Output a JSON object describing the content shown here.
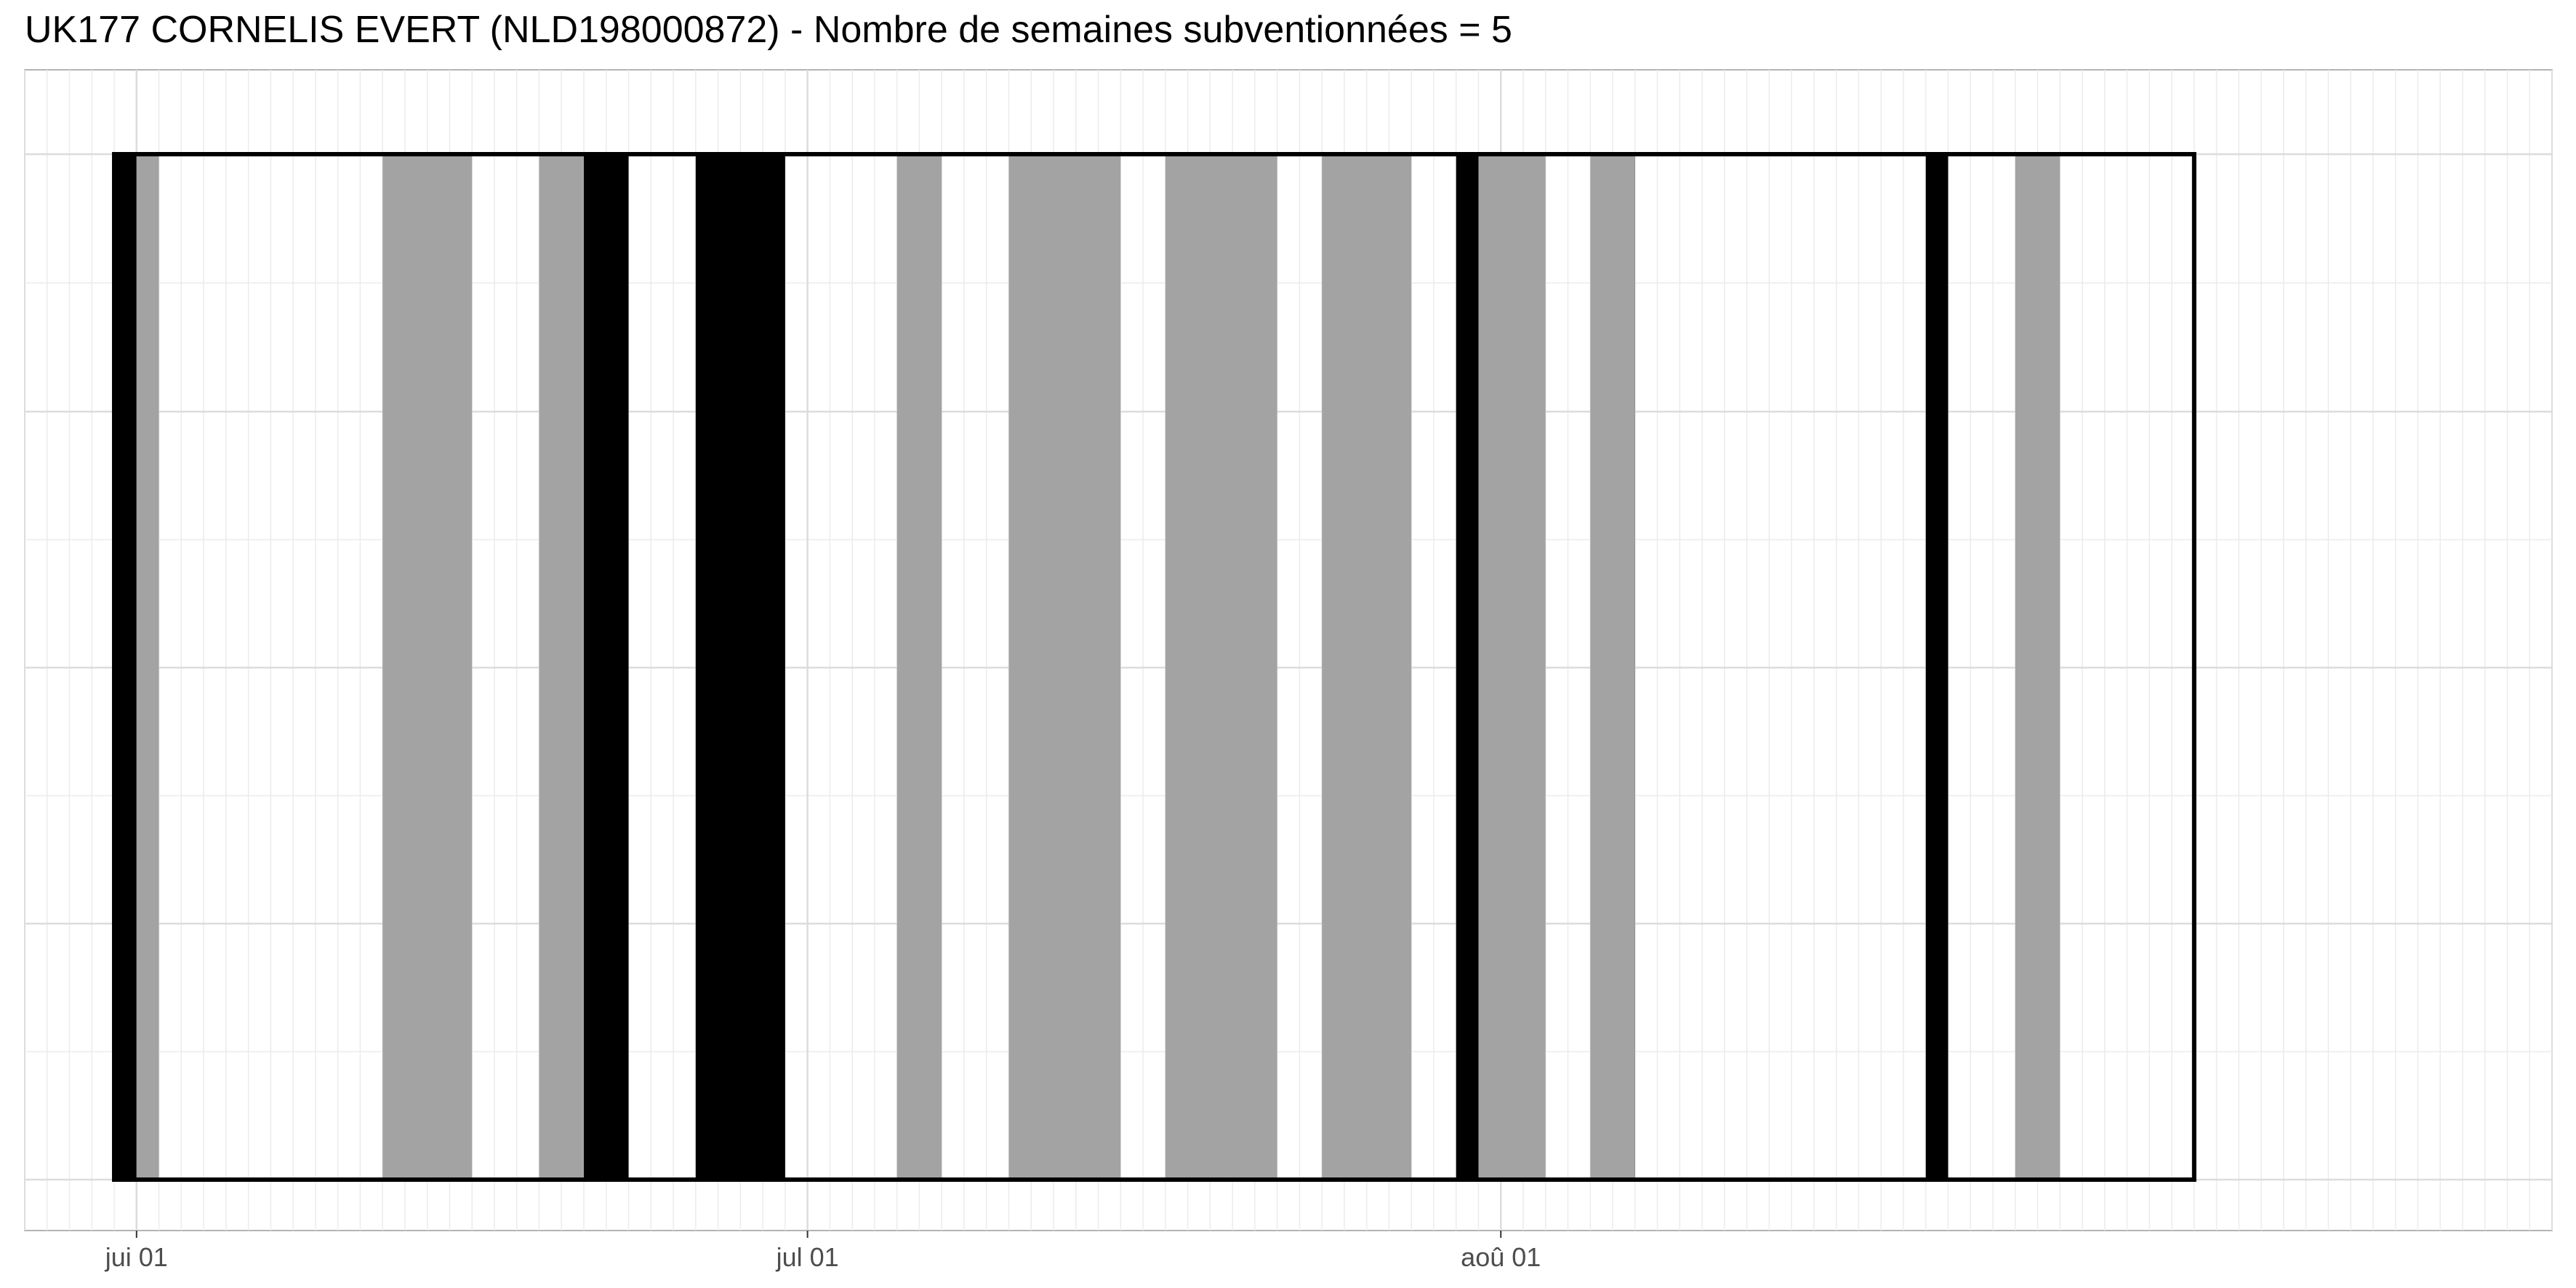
{
  "title": "UK177 CORNELIS EVERT (NLD198000872) - Nombre de semaines subventionnées = 5",
  "chart_data": {
    "type": "bar",
    "title": "UK177 CORNELIS EVERT (NLD198000872) - Nombre de semaines subventionnées = 5",
    "xlabel": "",
    "ylabel": "",
    "x_axis": "date",
    "xlim": [
      "2022-05-27",
      "2022-09-17"
    ],
    "x_ticks": [
      {
        "date": "2022-06-01",
        "label": "jui 01"
      },
      {
        "date": "2022-07-01",
        "label": "jul 01"
      },
      {
        "date": "2022-08-01",
        "label": "aoû 01"
      }
    ],
    "period": {
      "start": "2022-05-31",
      "end": "2022-09-01"
    },
    "grid": true,
    "legend": "none",
    "colors": {
      "black": "#000000",
      "grey": "#a3a3a3",
      "outline": "#000000"
    },
    "series": [
      {
        "fill": "black",
        "intervals": [
          {
            "start": "2022-05-31",
            "end": "2022-06-01"
          },
          {
            "start": "2022-06-21",
            "end": "2022-06-23"
          },
          {
            "start": "2022-06-26",
            "end": "2022-06-30"
          },
          {
            "start": "2022-07-30",
            "end": "2022-08-01"
          },
          {
            "start": "2022-08-06",
            "end": "2022-08-07"
          },
          {
            "start": "2022-08-20",
            "end": "2022-08-21"
          }
        ]
      },
      {
        "fill": "grey",
        "intervals": [
          {
            "start": "2022-06-01",
            "end": "2022-06-02"
          },
          {
            "start": "2022-06-12",
            "end": "2022-06-16"
          },
          {
            "start": "2022-06-19",
            "end": "2022-06-21"
          },
          {
            "start": "2022-07-05",
            "end": "2022-07-07"
          },
          {
            "start": "2022-07-10",
            "end": "2022-07-15"
          },
          {
            "start": "2022-07-17",
            "end": "2022-07-22"
          },
          {
            "start": "2022-07-24",
            "end": "2022-07-28"
          },
          {
            "start": "2022-07-31",
            "end": "2022-08-03"
          },
          {
            "start": "2022-08-05",
            "end": "2022-08-07"
          },
          {
            "start": "2022-08-24",
            "end": "2022-08-26"
          }
        ]
      }
    ]
  }
}
